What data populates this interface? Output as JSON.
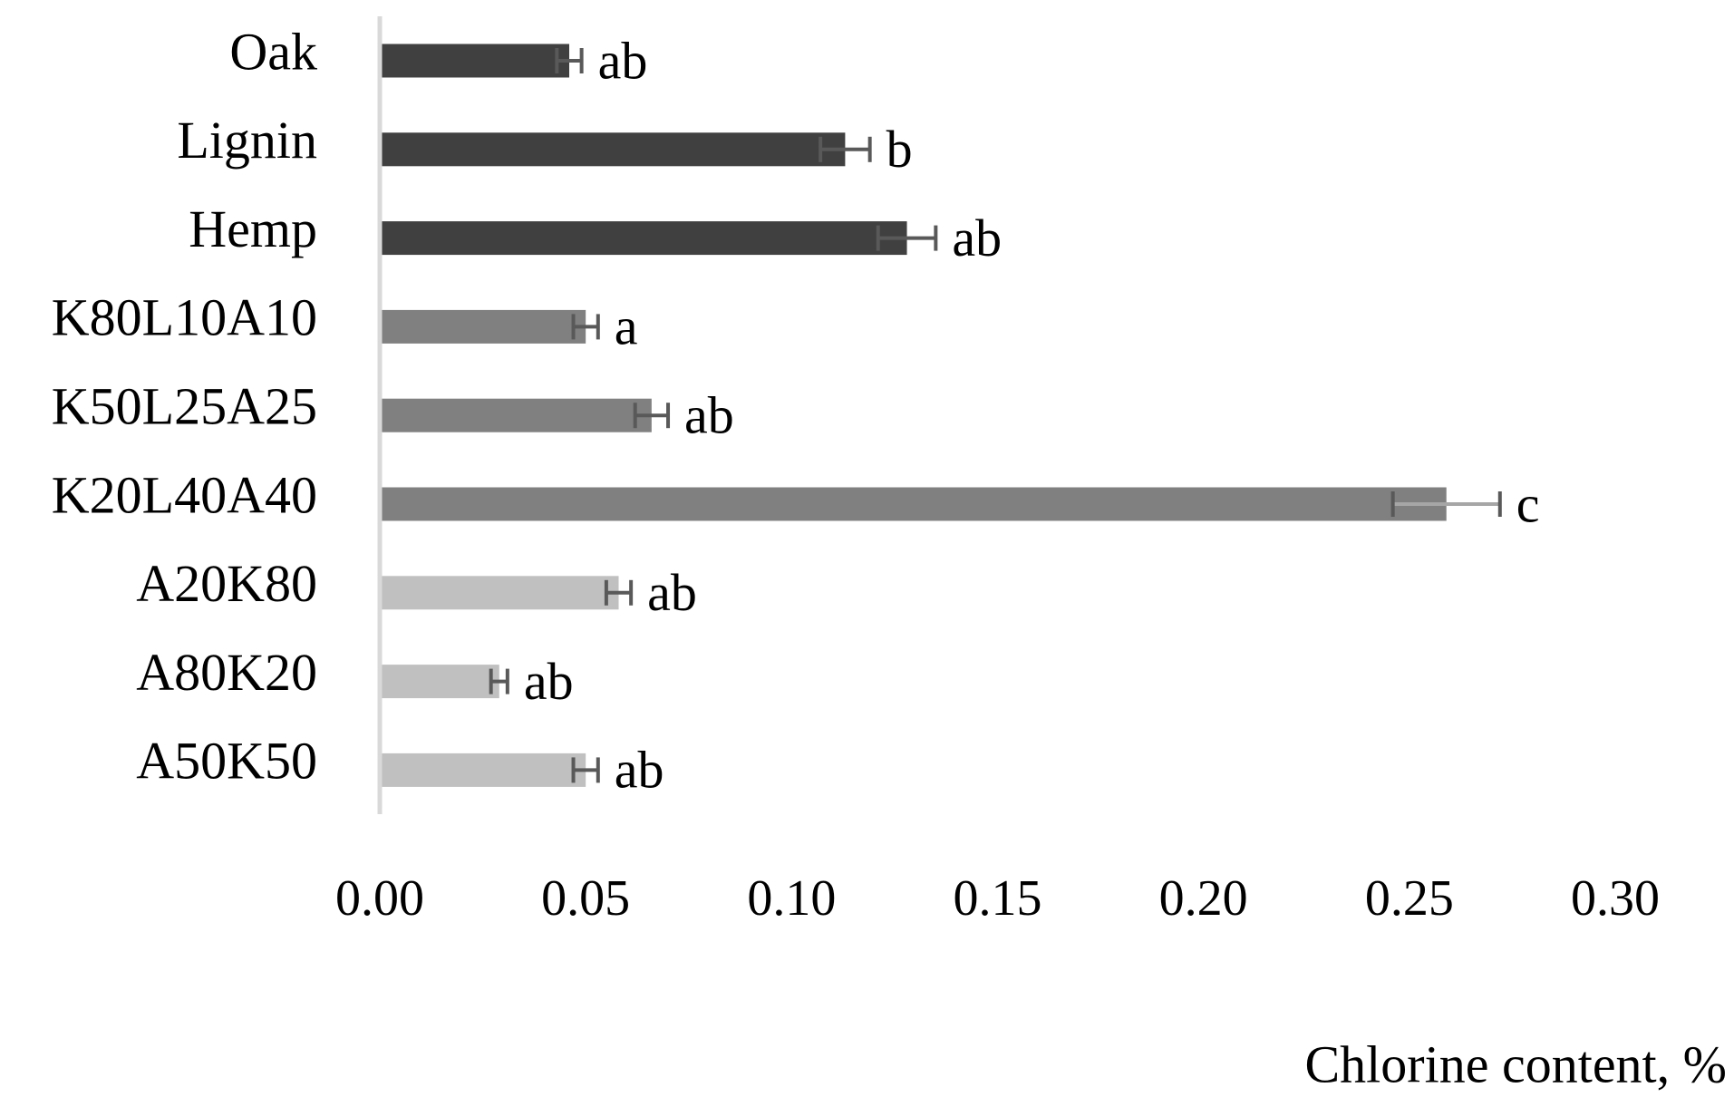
{
  "chart_data": {
    "type": "hbar",
    "x_label": "Chlorine content, %",
    "categories": [
      "Oak",
      "Lignin",
      "Hemp",
      "K80L10A10",
      "K50L25A25",
      "K20L40A40",
      "A20K80",
      "A80K20",
      "A50K50"
    ],
    "values": [
      0.046,
      0.113,
      0.128,
      0.05,
      0.066,
      0.259,
      0.058,
      0.029,
      0.05
    ],
    "errors": [
      0.003,
      0.006,
      0.007,
      0.003,
      0.004,
      0.013,
      0.003,
      0.002,
      0.003
    ],
    "annotations": [
      "ab",
      "b",
      "ab",
      "a",
      "ab",
      "c",
      "ab",
      "ab",
      "ab"
    ],
    "colors": [
      "#404040",
      "#404040",
      "#404040",
      "#808080",
      "#808080",
      "#808080",
      "#c0c0c0",
      "#c0c0c0",
      "#c0c0c0"
    ],
    "xlim": [
      0,
      0.3
    ],
    "xticks": [
      {
        "value": 0,
        "label": "0.00"
      },
      {
        "value": 0.05,
        "label": "0.05"
      },
      {
        "value": 0.1,
        "label": "0.10"
      },
      {
        "value": 0.15,
        "label": "0.15"
      },
      {
        "value": 0.2,
        "label": "0.20"
      },
      {
        "value": 0.25,
        "label": "0.25"
      },
      {
        "value": 0.3,
        "label": "0.30"
      }
    ]
  }
}
